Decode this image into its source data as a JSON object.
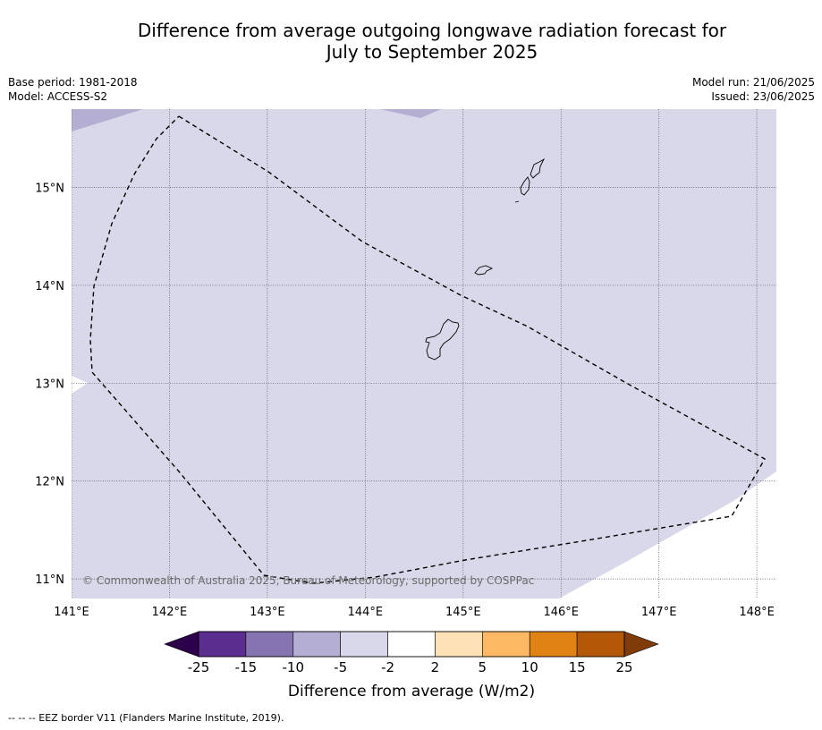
{
  "title": {
    "line1": "Difference from average outgoing longwave radiation forecast for",
    "line2": "July to September 2025"
  },
  "meta_left": {
    "base_period": "Base period: 1981-2018",
    "model": "Model: ACCESS-S2"
  },
  "meta_right": {
    "model_run": "Model run: 21/06/2025",
    "issued": "Issued: 23/06/2025"
  },
  "map": {
    "lon_range": [
      141.0,
      148.2
    ],
    "lat_range": [
      10.8,
      15.8
    ],
    "lon_ticks": [
      {
        "value": 141,
        "label": "141°E"
      },
      {
        "value": 142,
        "label": "142°E"
      },
      {
        "value": 143,
        "label": "143°E"
      },
      {
        "value": 144,
        "label": "144°E"
      },
      {
        "value": 145,
        "label": "145°E"
      },
      {
        "value": 146,
        "label": "146°E"
      },
      {
        "value": 147,
        "label": "147°E"
      },
      {
        "value": 148,
        "label": "148°E"
      }
    ],
    "lat_ticks": [
      {
        "value": 15,
        "label": "15°N"
      },
      {
        "value": 14,
        "label": "14°N"
      },
      {
        "value": 13,
        "label": "13°N"
      },
      {
        "value": 12,
        "label": "12°N"
      },
      {
        "value": 11,
        "label": "11°N"
      }
    ],
    "copyright": "© Commonwealth of Australia 2025, Bureau of Meteorology, supported by COSPPac",
    "colors": {
      "main_fill": "#d8d8ea",
      "dark_patch": "#b3aed2",
      "gridline": "#555555",
      "coast": "#000000",
      "eez": "#000000"
    }
  },
  "colorbar": {
    "label": "Difference from average (W/m2)",
    "tick_labels": [
      "-25",
      "-15",
      "-10",
      "-5",
      "-2",
      "2",
      "5",
      "10",
      "15",
      "25"
    ],
    "bins": [
      "#5b2d8e",
      "#8574b0",
      "#b3aed2",
      "#d8d8ea",
      "#ffffff",
      "#fee1b6",
      "#fdb863",
      "#e08214",
      "#b35806"
    ],
    "extend_low": "#2d004b",
    "extend_high": "#7f3b08"
  },
  "footer": "--  --  -- EEZ border V11 (Flanders Marine Institute, 2019)."
}
